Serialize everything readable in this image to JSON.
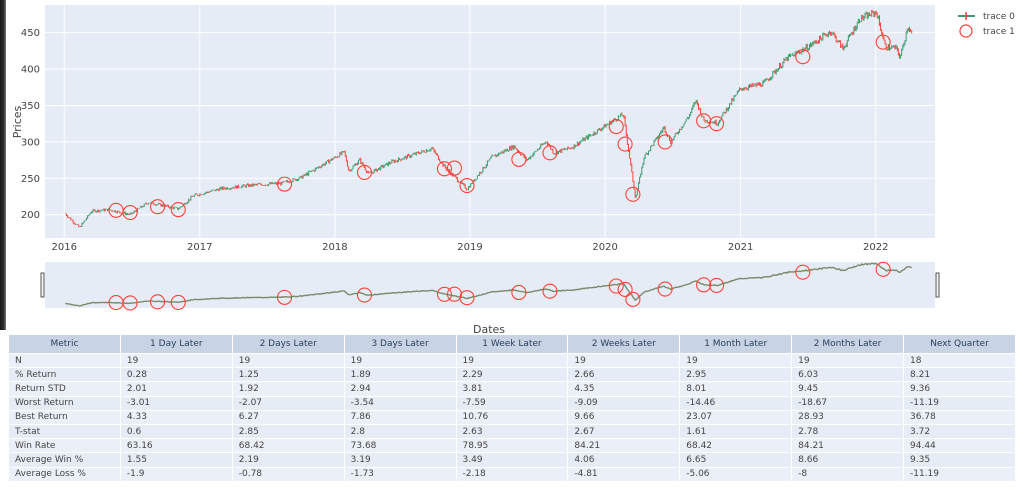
{
  "chart_data": {
    "type": "candlestick",
    "xlabel": "Dates",
    "ylabel": "Prices",
    "x_range": [
      "2015-11-10",
      "2022-06-10"
    ],
    "y_range": [
      168,
      488
    ],
    "x_ticks": [
      "2016",
      "2017",
      "2018",
      "2019",
      "2020",
      "2021",
      "2022"
    ],
    "y_ticks": [
      200,
      250,
      300,
      350,
      400,
      450
    ],
    "grid": true,
    "legend_position": "top-right",
    "series": [
      {
        "name": "trace 0",
        "kind": "candlestick",
        "colors": {
          "increasing": "#3d9970",
          "decreasing": "#ff4136"
        },
        "x": [
          "2016-01-04",
          "2016-02-11",
          "2016-03-15",
          "2016-05-01",
          "2016-06-27",
          "2016-08-15",
          "2016-11-04",
          "2016-12-15",
          "2017-03-01",
          "2017-06-01",
          "2017-08-10",
          "2017-10-01",
          "2018-01-26",
          "2018-02-08",
          "2018-03-09",
          "2018-04-02",
          "2018-06-01",
          "2018-09-20",
          "2018-10-25",
          "2018-12-24",
          "2019-03-01",
          "2019-04-30",
          "2019-06-03",
          "2019-07-26",
          "2019-08-15",
          "2019-10-01",
          "2020-02-19",
          "2020-03-23",
          "2020-04-15",
          "2020-06-08",
          "2020-06-26",
          "2020-08-15",
          "2020-09-02",
          "2020-09-23",
          "2020-10-30",
          "2020-12-31",
          "2021-03-04",
          "2021-05-07",
          "2021-07-01",
          "2021-09-02",
          "2021-10-04",
          "2021-11-19",
          "2022-01-03",
          "2022-01-27",
          "2022-02-24",
          "2022-03-08",
          "2022-03-29",
          "2022-04-08"
        ],
        "y": [
          201,
          182,
          205,
          207,
          200,
          217,
          208,
          226,
          236,
          241,
          243,
          251,
          286,
          260,
          275,
          256,
          272,
          291,
          265,
          235,
          279,
          294,
          275,
          301,
          285,
          292,
          338,
          222,
          279,
          320,
          300,
          336,
          357,
          330,
          326,
          373,
          380,
          415,
          430,
          452,
          428,
          469,
          478,
          430,
          429,
          416,
          460,
          448
        ]
      },
      {
        "name": "trace 1",
        "kind": "markers",
        "marker": "circle-open",
        "color": "#ff4136",
        "x": [
          "2016-05-20",
          "2016-06-27",
          "2016-09-09",
          "2016-11-04",
          "2017-08-18",
          "2018-03-22",
          "2018-10-24",
          "2018-11-20",
          "2018-12-24",
          "2019-05-13",
          "2019-08-05",
          "2020-01-31",
          "2020-02-24",
          "2020-03-16",
          "2020-06-11",
          "2020-09-23",
          "2020-10-28",
          "2021-06-18",
          "2022-01-21"
        ],
        "y": [
          206,
          203,
          211,
          207,
          242,
          258,
          263,
          264,
          240,
          276,
          285,
          321,
          297,
          228,
          300,
          329,
          325,
          417,
          437
        ]
      }
    ]
  },
  "table": {
    "headers": [
      "Metric",
      "1 Day Later",
      "2 Days Later",
      "3 Days Later",
      "1 Week Later",
      "2 Weeks Later",
      "1 Month Later",
      "2 Months Later",
      "Next Quarter"
    ],
    "rows": [
      [
        "N",
        "19",
        "19",
        "19",
        "19",
        "19",
        "19",
        "19",
        "18"
      ],
      [
        "% Return",
        "0.28",
        "1.25",
        "1.89",
        "2.29",
        "2.66",
        "2.95",
        "6.03",
        "8.21"
      ],
      [
        "Return STD",
        "2.01",
        "1.92",
        "2.94",
        "3.81",
        "4.35",
        "8.01",
        "9.45",
        "9.36"
      ],
      [
        "Worst Return",
        "-3.01",
        "-2.07",
        "-3.54",
        "-7.59",
        "-9.09",
        "-14.46",
        "-18.67",
        "-11.19"
      ],
      [
        "Best Return",
        "4.33",
        "6.27",
        "7.86",
        "10.76",
        "9.66",
        "23.07",
        "28.93",
        "36.78"
      ],
      [
        "T-stat",
        "0.6",
        "2.85",
        "2.8",
        "2.63",
        "2.67",
        "1.61",
        "2.78",
        "3.72"
      ],
      [
        "Win Rate",
        "63.16",
        "68.42",
        "73.68",
        "78.95",
        "84.21",
        "68.42",
        "84.21",
        "94.44"
      ],
      [
        "Average Win %",
        "1.55",
        "2.19",
        "3.19",
        "3.49",
        "4.06",
        "6.65",
        "8.66",
        "9.35"
      ],
      [
        "Average Loss %",
        "-1.9",
        "-0.78",
        "-1.73",
        "-2.18",
        "-4.81",
        "-5.06",
        "-8",
        "-11.19"
      ]
    ]
  }
}
